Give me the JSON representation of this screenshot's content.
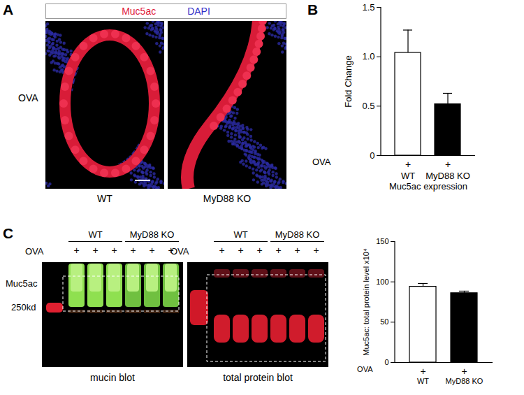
{
  "figure": {
    "panel_A": {
      "label": "A",
      "legend": [
        {
          "text": "Muc5ac",
          "color": "#e0203a"
        },
        {
          "text": "DAPI",
          "color": "#3030c8"
        }
      ],
      "row_label": "OVA",
      "images": [
        "WT",
        "MyD88 KO"
      ]
    },
    "panel_C_blots": {
      "label": "C",
      "row_label": "OVA",
      "marker_labels": [
        "Muc5ac",
        "250kd"
      ],
      "blots": [
        {
          "title": "mucin blot",
          "groups": [
            {
              "name": "WT",
              "lanes": [
                "+",
                "+",
                "+"
              ]
            },
            {
              "name": "MyD88 KO",
              "lanes": [
                "+",
                "+",
                "+"
              ]
            }
          ]
        },
        {
          "title": "total protein blot",
          "groups": [
            {
              "name": "WT",
              "lanes": [
                "+",
                "+",
                "+"
              ]
            },
            {
              "name": "MyD88 KO",
              "lanes": [
                "+",
                "+",
                "+"
              ]
            }
          ]
        }
      ]
    }
  },
  "chart_data": [
    {
      "type": "bar",
      "panel": "B",
      "categories": [
        "WT",
        "MyD88 KO"
      ],
      "values": [
        1.04,
        0.52
      ],
      "errors": [
        0.23,
        0.11
      ],
      "colors": [
        "#ffffff",
        "#000000"
      ],
      "ylabel": "Fold Change",
      "xlabel": "Muc5ac expression",
      "row_label": "OVA",
      "row_values": [
        "+",
        "+"
      ],
      "ylim": [
        0,
        1.5
      ],
      "yticks": [
        0,
        0.5,
        {
          "value": 1,
          "label": "1.0"
        },
        1.5
      ]
    },
    {
      "type": "bar",
      "categories": [
        "WT",
        "MyD88 KO"
      ],
      "values": [
        94,
        86
      ],
      "errors": [
        4,
        2.5
      ],
      "colors": [
        "#ffffff",
        "#000000"
      ],
      "ylabel": "Muc5ac: total protein level x10⁴",
      "row_label": "OVA",
      "row_values": [
        "+",
        "+"
      ],
      "ylim": [
        0,
        150
      ],
      "yticks": [
        0,
        50,
        100,
        150
      ]
    }
  ]
}
